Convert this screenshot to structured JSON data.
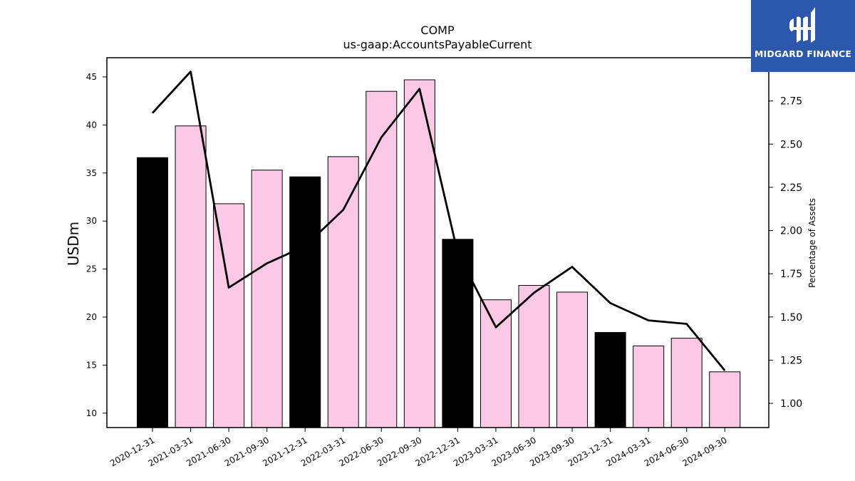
{
  "chart_data": {
    "type": "bar",
    "title": "COMP",
    "subtitle": "us-gaap:AccountsPayableCurrent",
    "xlabel": "",
    "ylabel": "USDm",
    "y2label": "Percentage of Assets",
    "categories": [
      "2020-12-31",
      "2021-03-31",
      "2021-06-30",
      "2021-09-30",
      "2021-12-31",
      "2022-03-31",
      "2022-06-30",
      "2022-09-30",
      "2022-12-31",
      "2023-03-31",
      "2023-06-30",
      "2023-09-30",
      "2023-12-31",
      "2024-03-31",
      "2024-06-30",
      "2024-09-30"
    ],
    "ylim": [
      8.5,
      47
    ],
    "y2lim": [
      0.86,
      3.0
    ],
    "yticks": [
      10,
      15,
      20,
      25,
      30,
      35,
      40,
      45
    ],
    "y2ticks": [
      "1.00",
      "1.25",
      "1.50",
      "1.75",
      "2.00",
      "2.25",
      "2.50",
      "2.75"
    ],
    "series": [
      {
        "type": "bar",
        "values": [
          36.6,
          39.9,
          31.8,
          35.3,
          34.6,
          36.7,
          43.5,
          44.7,
          28.1,
          21.8,
          23.3,
          22.6,
          18.4,
          17.0,
          17.8,
          14.3
        ],
        "colors": [
          "#000000",
          "#fbc9e5",
          "#fbc9e5",
          "#fbc9e5",
          "#000000",
          "#fbc9e5",
          "#fbc9e5",
          "#fbc9e5",
          "#000000",
          "#fbc9e5",
          "#fbc9e5",
          "#fbc9e5",
          "#000000",
          "#fbc9e5",
          "#fbc9e5",
          "#fbc9e5"
        ]
      },
      {
        "type": "line",
        "axis": "secondary",
        "color": "#000000",
        "values": [
          2.68,
          2.92,
          1.67,
          1.81,
          1.91,
          2.12,
          2.54,
          2.82,
          1.87,
          1.44,
          1.64,
          1.79,
          1.58,
          1.48,
          1.46,
          1.19
        ]
      }
    ],
    "grid": false
  },
  "logo": {
    "text": "MIDGARD FINANCE",
    "background": "#2b57ad"
  }
}
